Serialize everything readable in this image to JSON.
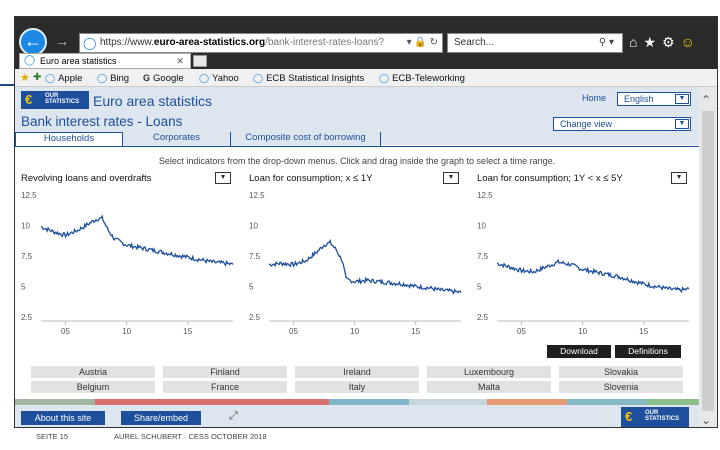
{
  "browser": {
    "address": {
      "scheme": "https://www.",
      "domain": "euro-area-statistics.org",
      "path": "/bank-interest-rates-loans?",
      "controls": "▾ 🔒 ↻"
    },
    "search_placeholder": "Search...",
    "tab_title": "Euro area statistics",
    "favorites": [
      {
        "label": "Apple",
        "icon": "ie-icon"
      },
      {
        "label": "Bing",
        "icon": "ie-icon"
      },
      {
        "label": "Google",
        "icon": "google-icon"
      },
      {
        "label": "Yahoo",
        "icon": "ie-icon"
      },
      {
        "label": "ECB Statistical Insights",
        "icon": "ie-icon"
      },
      {
        "label": "ECB-Teleworking",
        "icon": "ie-icon"
      }
    ]
  },
  "site": {
    "logo_text": "OUR STATISTICS",
    "title": "Euro area statistics",
    "page_title": "Bank interest rates - Loans",
    "home_label": "Home",
    "language": "English",
    "change_view": "Change view",
    "tabs": [
      "Households",
      "Corporates",
      "Composite cost of borrowing"
    ],
    "active_tab": "Households",
    "instructions": "Select indicators from the drop-down menus. Click and drag inside the graph to select a time range.",
    "buttons": {
      "download": "Download",
      "definitions": "Definitions"
    },
    "countries": [
      "Austria",
      "Finland",
      "Ireland",
      "Luxembourg",
      "Slovakia",
      "Belgium",
      "France",
      "Italy",
      "Malta",
      "Slovenia"
    ],
    "country_colorbar": [
      "#a3b8a0",
      "#d9706b",
      "#d9706b",
      "#7fb4c9",
      "#c7d7dd",
      "#e69a74",
      "#87b9c4",
      "#8cbf8a"
    ],
    "bottom": {
      "about": "About this site",
      "share": "Share/embed"
    }
  },
  "footer": {
    "slide": "SEITE 15",
    "author": "AUREL SCHUBERT · CESS OCTOBER 2018"
  },
  "chart_data": [
    {
      "type": "line",
      "title": "Revolving loans and overdrafts",
      "x_ticks": [
        5,
        10,
        15
      ],
      "x_tick_labels": [
        "05",
        "10",
        "15"
      ],
      "y_ticks": [
        2.5,
        5,
        7.5,
        10,
        12.5
      ],
      "ylim": [
        2.5,
        12.5
      ],
      "xlim": [
        2003,
        2018.7
      ],
      "line_color": "#1d4f9c",
      "series": [
        {
          "x": [
            2003,
            2004,
            2005,
            2006,
            2007,
            2007.5,
            2008,
            2008.5,
            2009,
            2010,
            2011,
            2012,
            2013,
            2014,
            2015,
            2016,
            2017,
            2018,
            2018.7
          ],
          "y": [
            9.9,
            9.5,
            9.2,
            9.6,
            10.2,
            10.5,
            10.6,
            9.6,
            8.9,
            8.4,
            8.2,
            8.0,
            7.8,
            7.6,
            7.4,
            7.2,
            7.0,
            6.9,
            6.8
          ]
        }
      ]
    },
    {
      "type": "line",
      "title": "Loan for consumption; x ≤ 1Y",
      "x_ticks": [
        5,
        10,
        15
      ],
      "x_tick_labels": [
        "05",
        "10",
        "15"
      ],
      "y_ticks": [
        2.5,
        5,
        7.5,
        10,
        12.5
      ],
      "ylim": [
        2.5,
        12.5
      ],
      "xlim": [
        2003,
        2018.7
      ],
      "line_color": "#1d4f9c",
      "series": [
        {
          "x": [
            2003,
            2004,
            2005,
            2006,
            2007,
            2007.5,
            2008,
            2008.5,
            2009,
            2009.3,
            2010,
            2011,
            2012,
            2013,
            2014,
            2015,
            2016,
            2017,
            2018,
            2018.7
          ],
          "y": [
            6.8,
            6.9,
            6.8,
            7.1,
            7.9,
            8.4,
            8.6,
            8.0,
            7.1,
            5.6,
            5.4,
            5.5,
            5.4,
            5.3,
            5.2,
            5.0,
            4.9,
            4.7,
            4.6,
            4.5
          ]
        }
      ]
    },
    {
      "type": "line",
      "title": "Loan for consumption; 1Y < x ≤ 5Y",
      "x_ticks": [
        5,
        10,
        15
      ],
      "x_tick_labels": [
        "05",
        "10",
        "15"
      ],
      "y_ticks": [
        2.5,
        5,
        7.5,
        10,
        12.5
      ],
      "ylim": [
        2.5,
        12.5
      ],
      "xlim": [
        2003,
        2018.7
      ],
      "line_color": "#1d4f9c",
      "series": [
        {
          "x": [
            2003,
            2004,
            2005,
            2006,
            2007,
            2008,
            2009,
            2010,
            2011,
            2012,
            2013,
            2014,
            2015,
            2016,
            2017,
            2018,
            2018.7
          ],
          "y": [
            6.9,
            6.6,
            6.3,
            6.2,
            6.6,
            7.0,
            6.8,
            6.4,
            6.2,
            6.0,
            5.8,
            5.5,
            5.2,
            5.0,
            4.8,
            4.7,
            4.8
          ]
        }
      ]
    }
  ]
}
